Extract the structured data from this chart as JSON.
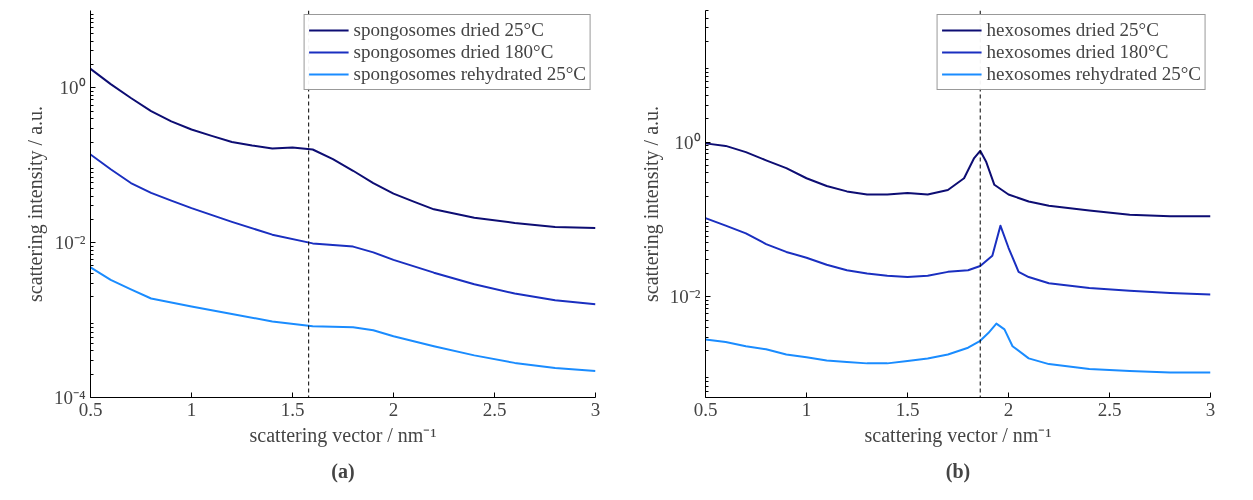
{
  "chart_data": [
    {
      "type": "line",
      "xlabel": "scattering vector / nm⁻¹",
      "ylabel": "scattering intensity / a.u.",
      "annotations": [
        "(a)"
      ],
      "log": "y",
      "legend": "top right",
      "grid": false,
      "line_style": "solid",
      "xlim": [
        0.5,
        3
      ],
      "xticks": [
        0.5,
        1,
        1.5,
        2,
        2.5,
        3
      ],
      "ylim": [
        0.0001,
        10
      ],
      "yticks": [
        {
          "value": 0.0001,
          "label": "10⁻⁴"
        },
        {
          "value": 0.01,
          "label": "10⁻²"
        },
        {
          "value": 1,
          "label": "10⁰"
        }
      ],
      "ref_lines": [
        {
          "axis": "x",
          "value": 1.58,
          "label": null,
          "color": "#000000",
          "line_style": "dashed"
        }
      ],
      "series": [
        {
          "name": "spongosomes dried 25°C",
          "color": "#0d0d73",
          "x": [
            0.5,
            0.6,
            0.7,
            0.8,
            0.9,
            1.0,
            1.1,
            1.2,
            1.3,
            1.4,
            1.5,
            1.6,
            1.7,
            1.8,
            1.9,
            2.0,
            2.1,
            2.2,
            2.4,
            2.6,
            2.8,
            3.0
          ],
          "values": [
            1.76,
            1.12,
            0.74,
            0.5,
            0.37,
            0.29,
            0.24,
            0.2,
            0.18,
            0.165,
            0.17,
            0.16,
            0.12,
            0.085,
            0.059,
            0.043,
            0.034,
            0.027,
            0.021,
            0.018,
            0.016,
            0.0155
          ]
        },
        {
          "name": "spongosomes dried 180°C",
          "color": "#1a2fc0",
          "x": [
            0.5,
            0.6,
            0.7,
            0.8,
            0.9,
            1.0,
            1.2,
            1.4,
            1.6,
            1.8,
            1.9,
            2.0,
            2.2,
            2.4,
            2.6,
            2.8,
            3.0
          ],
          "values": [
            0.138,
            0.089,
            0.059,
            0.044,
            0.035,
            0.028,
            0.0186,
            0.0127,
            0.0098,
            0.0089,
            0.0075,
            0.006,
            0.0041,
            0.0029,
            0.0022,
            0.0018,
            0.0016
          ]
        },
        {
          "name": "spongosomes rehydrated 25°C",
          "color": "#1a8cff",
          "x": [
            0.5,
            0.6,
            0.7,
            0.8,
            1.0,
            1.2,
            1.4,
            1.6,
            1.8,
            1.9,
            2.0,
            2.2,
            2.4,
            2.6,
            2.8,
            3.0
          ],
          "values": [
            0.0048,
            0.0033,
            0.0025,
            0.0019,
            0.0015,
            0.0012,
            0.00096,
            0.00083,
            0.00081,
            0.00074,
            0.00062,
            0.00046,
            0.00035,
            0.00028,
            0.00024,
            0.00022
          ]
        }
      ]
    },
    {
      "type": "line",
      "xlabel": "scattering vector / nm⁻¹",
      "ylabel": "scattering intensity / a.u.",
      "annotations": [
        "(b)"
      ],
      "log": "y",
      "legend": "top right",
      "grid": false,
      "line_style": "solid",
      "xlim": [
        0.5,
        3
      ],
      "xticks": [
        0.5,
        1,
        1.5,
        2,
        2.5,
        3
      ],
      "ylim": [
        0.0005,
        50
      ],
      "yticks": [
        {
          "value": 0.01,
          "label": "10⁻²"
        },
        {
          "value": 1,
          "label": "10⁰"
        }
      ],
      "ref_lines": [
        {
          "axis": "x",
          "value": 1.86,
          "label": null,
          "color": "#000000",
          "line_style": "dashed"
        }
      ],
      "series": [
        {
          "name": "hexosomes dried 25°C",
          "color": "#0d0d73",
          "x": [
            0.5,
            0.6,
            0.7,
            0.8,
            0.9,
            1.0,
            1.1,
            1.2,
            1.3,
            1.4,
            1.5,
            1.6,
            1.7,
            1.78,
            1.83,
            1.86,
            1.89,
            1.93,
            2.0,
            2.1,
            2.2,
            2.4,
            2.6,
            2.8,
            3.0
          ],
          "values": [
            0.96,
            0.89,
            0.74,
            0.58,
            0.46,
            0.34,
            0.27,
            0.23,
            0.21,
            0.21,
            0.22,
            0.21,
            0.24,
            0.34,
            0.62,
            0.77,
            0.55,
            0.28,
            0.21,
            0.17,
            0.15,
            0.13,
            0.115,
            0.11,
            0.11
          ]
        },
        {
          "name": "hexosomes dried 180°C",
          "color": "#1a2fc0",
          "x": [
            0.5,
            0.6,
            0.7,
            0.8,
            0.9,
            1.0,
            1.1,
            1.2,
            1.3,
            1.4,
            1.5,
            1.6,
            1.7,
            1.8,
            1.86,
            1.92,
            1.96,
            2.0,
            2.05,
            2.1,
            2.2,
            2.4,
            2.6,
            2.8,
            3.0
          ],
          "values": [
            0.104,
            0.083,
            0.066,
            0.048,
            0.038,
            0.032,
            0.026,
            0.022,
            0.02,
            0.0187,
            0.018,
            0.0187,
            0.021,
            0.022,
            0.025,
            0.034,
            0.083,
            0.043,
            0.021,
            0.018,
            0.015,
            0.013,
            0.012,
            0.0112,
            0.0107
          ]
        },
        {
          "name": "hexosomes rehydrated 25°C",
          "color": "#1a8cff",
          "x": [
            0.5,
            0.6,
            0.7,
            0.8,
            0.9,
            1.0,
            1.1,
            1.2,
            1.3,
            1.4,
            1.5,
            1.6,
            1.7,
            1.8,
            1.86,
            1.9,
            1.94,
            1.98,
            2.02,
            2.1,
            2.2,
            2.4,
            2.6,
            2.8,
            3.0
          ],
          "values": [
            0.0028,
            0.0026,
            0.0023,
            0.0021,
            0.0018,
            0.00166,
            0.0015,
            0.00144,
            0.00138,
            0.00138,
            0.00148,
            0.0016,
            0.0018,
            0.0022,
            0.0027,
            0.0034,
            0.0045,
            0.0038,
            0.0023,
            0.0016,
            0.00135,
            0.00117,
            0.0011,
            0.00105,
            0.00105
          ]
        }
      ]
    }
  ]
}
